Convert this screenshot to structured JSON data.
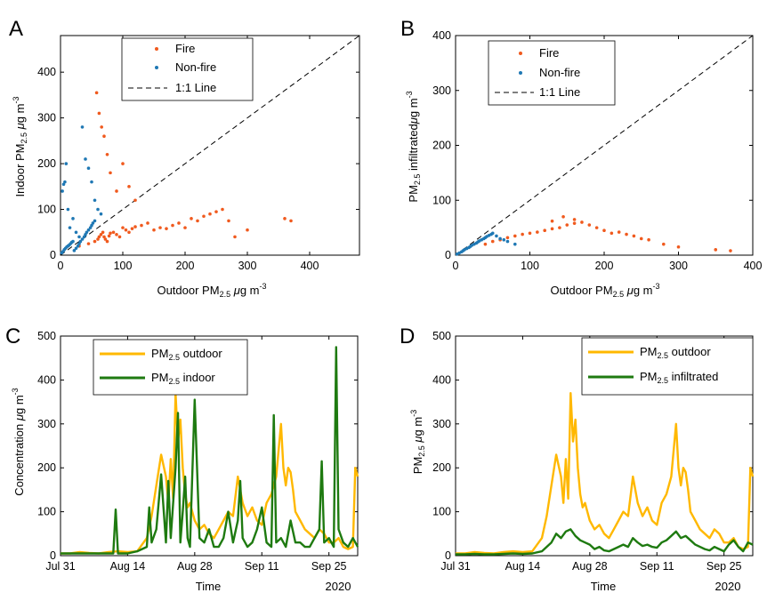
{
  "colors": {
    "fire": "#F05A1E",
    "nonfire": "#1F78B4",
    "outdoor": "#FFB800",
    "indoor": "#1E7A10",
    "line11": "#000000"
  },
  "chart_data": [
    {
      "panel": "A",
      "type": "scatter",
      "xlabel_main": "Outdoor PM",
      "xlabel_sub": "2.5",
      "xlabel_unit_mu": "μ",
      "xlabel_unit": "g m",
      "xlabel_exp": "-3",
      "ylabel_main": "Indoor PM",
      "ylabel_sub": "2.5",
      "ylabel_unit_mu": "μ",
      "ylabel_unit": "g m",
      "ylabel_exp": "-3",
      "xlim": [
        0,
        480
      ],
      "ylim": [
        0,
        480
      ],
      "xticks": [
        "0",
        "100",
        "200",
        "300",
        "400"
      ],
      "yticks": [
        "0",
        "100",
        "200",
        "300",
        "400"
      ],
      "legend": [
        "Fire",
        "Non-fire",
        "1:1 Line"
      ],
      "legend_position": "top-center",
      "series": [
        {
          "name": "Fire",
          "x": [
            30,
            45,
            55,
            60,
            62,
            65,
            68,
            70,
            72,
            75,
            78,
            80,
            85,
            90,
            95,
            100,
            105,
            110,
            115,
            120,
            130,
            140,
            150,
            160,
            170,
            180,
            190,
            200,
            210,
            220,
            230,
            240,
            250,
            260,
            270,
            280,
            300,
            360,
            370,
            58,
            62,
            66,
            70,
            75,
            80,
            90,
            100,
            110,
            120
          ],
          "y": [
            20,
            25,
            30,
            35,
            40,
            45,
            50,
            40,
            35,
            30,
            42,
            48,
            50,
            45,
            40,
            60,
            55,
            50,
            58,
            62,
            65,
            70,
            55,
            60,
            58,
            65,
            70,
            60,
            80,
            75,
            85,
            90,
            95,
            100,
            75,
            40,
            55,
            80,
            75,
            355,
            310,
            280,
            260,
            220,
            180,
            140,
            200,
            150,
            120
          ]
        },
        {
          "name": "Non-fire",
          "x": [
            2,
            4,
            6,
            8,
            10,
            12,
            14,
            16,
            18,
            20,
            22,
            25,
            28,
            30,
            32,
            35,
            38,
            40,
            42,
            45,
            48,
            50,
            52,
            55,
            3,
            5,
            7,
            9,
            12,
            15,
            20,
            25,
            30,
            35,
            40,
            45,
            50,
            55,
            60,
            65
          ],
          "y": [
            5,
            8,
            12,
            15,
            18,
            20,
            22,
            25,
            28,
            30,
            10,
            15,
            20,
            25,
            30,
            35,
            40,
            45,
            50,
            55,
            60,
            65,
            70,
            75,
            140,
            155,
            160,
            200,
            100,
            60,
            80,
            50,
            40,
            280,
            210,
            190,
            160,
            120,
            100,
            90
          ]
        }
      ]
    },
    {
      "panel": "B",
      "type": "scatter",
      "xlabel_main": "Outdoor PM",
      "xlabel_sub": "2.5",
      "xlabel_unit_mu": "μ",
      "xlabel_unit": "g m",
      "xlabel_exp": "-3",
      "ylabel_main": "PM",
      "ylabel_sub": "2.5",
      "ylabel_mid": " infiltrated",
      "ylabel_unit_mu": "μ",
      "ylabel_unit": "g m",
      "ylabel_exp": "-3",
      "xlim": [
        0,
        400
      ],
      "ylim": [
        0,
        400
      ],
      "xticks": [
        "0",
        "100",
        "200",
        "300",
        "400"
      ],
      "yticks": [
        "0",
        "100",
        "200",
        "300",
        "400"
      ],
      "legend": [
        "Fire",
        "Non-fire",
        "1:1 Line"
      ],
      "legend_position": "top-center",
      "series": [
        {
          "name": "Fire",
          "x": [
            40,
            50,
            60,
            70,
            80,
            90,
            100,
            110,
            120,
            130,
            140,
            150,
            160,
            170,
            180,
            190,
            200,
            210,
            220,
            230,
            240,
            250,
            260,
            280,
            300,
            350,
            370,
            145,
            160,
            130
          ],
          "y": [
            20,
            25,
            28,
            32,
            35,
            38,
            40,
            42,
            45,
            48,
            50,
            55,
            58,
            60,
            55,
            50,
            45,
            40,
            42,
            38,
            35,
            30,
            28,
            20,
            15,
            10,
            8,
            70,
            65,
            62
          ]
        },
        {
          "name": "Non-fire",
          "x": [
            2,
            5,
            8,
            10,
            12,
            15,
            18,
            20,
            22,
            25,
            28,
            30,
            32,
            35,
            38,
            40,
            42,
            45,
            48,
            50,
            55,
            60,
            65,
            70,
            80
          ],
          "y": [
            2,
            4,
            6,
            8,
            10,
            12,
            14,
            16,
            18,
            20,
            22,
            24,
            26,
            28,
            30,
            32,
            34,
            36,
            38,
            40,
            35,
            30,
            28,
            25,
            20
          ]
        }
      ]
    },
    {
      "panel": "C",
      "type": "line",
      "xlabel": "Time",
      "ylabel_main": "Concentration ",
      "ylabel_unit_mu": "μ",
      "ylabel_unit": "g m",
      "ylabel_exp": "-3",
      "year_label": "2020",
      "xlim": [
        0,
        62
      ],
      "ylim": [
        0,
        500
      ],
      "xticks": [
        "Jul 31",
        "Aug 14",
        "Aug 28",
        "Sep 11",
        "Sep 25"
      ],
      "xtick_days": [
        0,
        14,
        28,
        42,
        56
      ],
      "yticks": [
        "0",
        "100",
        "200",
        "300",
        "400",
        "500"
      ],
      "legend_position": "top-left",
      "legend": [
        {
          "main": "PM",
          "sub": "2.5",
          "rest": " outdoor"
        },
        {
          "main": "PM",
          "sub": "2.5",
          "rest": " indoor"
        }
      ],
      "series": [
        {
          "name": "PM2.5 outdoor",
          "t": [
            0,
            2,
            4,
            6,
            8,
            10,
            12,
            14,
            16,
            18,
            19,
            20,
            21,
            22,
            22.5,
            23,
            23.5,
            24,
            24.5,
            25,
            25.5,
            26,
            26.5,
            27,
            27.5,
            28,
            29,
            30,
            31,
            32,
            33,
            34,
            35,
            36,
            37,
            38,
            39,
            40,
            41,
            42,
            43,
            44,
            45,
            46,
            46.5,
            47,
            47.5,
            48,
            48.5,
            49,
            50,
            51,
            52,
            53,
            54,
            55,
            56,
            57,
            58,
            59,
            60,
            61,
            61.5,
            62
          ],
          "v": [
            5,
            5,
            8,
            6,
            5,
            8,
            10,
            8,
            10,
            40,
            90,
            160,
            230,
            180,
            120,
            220,
            130,
            370,
            260,
            310,
            200,
            140,
            110,
            120,
            100,
            80,
            60,
            70,
            50,
            40,
            60,
            80,
            100,
            90,
            180,
            120,
            90,
            110,
            80,
            70,
            120,
            140,
            180,
            300,
            200,
            160,
            200,
            190,
            150,
            100,
            80,
            60,
            50,
            40,
            60,
            50,
            30,
            30,
            40,
            20,
            15,
            20,
            200,
            180
          ]
        },
        {
          "name": "PM2.5 indoor",
          "t": [
            0,
            2,
            4,
            6,
            8,
            10,
            11,
            11.5,
            12,
            14,
            16,
            18,
            18.5,
            19,
            20,
            21,
            22,
            22.5,
            23,
            24,
            24.5,
            25,
            25.5,
            26,
            26.5,
            27,
            28,
            29,
            30,
            31,
            32,
            33,
            34,
            35,
            36,
            37,
            37.5,
            38,
            39,
            40,
            41,
            42,
            43,
            44,
            44.5,
            45,
            46,
            47,
            48,
            49,
            50,
            51,
            52,
            53,
            54,
            54.5,
            55,
            56,
            57,
            57.5,
            58,
            59,
            60,
            61,
            62
          ],
          "v": [
            5,
            5,
            5,
            5,
            5,
            5,
            5,
            105,
            5,
            5,
            10,
            20,
            110,
            30,
            60,
            185,
            30,
            170,
            40,
            200,
            325,
            30,
            100,
            180,
            40,
            20,
            355,
            40,
            30,
            60,
            20,
            20,
            40,
            100,
            30,
            80,
            170,
            40,
            20,
            30,
            60,
            110,
            30,
            20,
            320,
            30,
            40,
            20,
            80,
            30,
            30,
            20,
            20,
            40,
            60,
            215,
            30,
            40,
            20,
            475,
            60,
            30,
            20,
            40,
            20
          ]
        }
      ]
    },
    {
      "panel": "D",
      "type": "line",
      "xlabel": "Time",
      "ylabel_main": "PM",
      "ylabel_sub": "2.5",
      "ylabel_unit_mu": "μ",
      "ylabel_unit": "g m",
      "ylabel_exp": "-3",
      "year_label": "2020",
      "xlim": [
        0,
        62
      ],
      "ylim": [
        0,
        500
      ],
      "xticks": [
        "Jul 31",
        "Aug 14",
        "Aug 28",
        "Sep 11",
        "Sep 25"
      ],
      "xtick_days": [
        0,
        14,
        28,
        42,
        56
      ],
      "yticks": [
        "0",
        "100",
        "200",
        "300",
        "400",
        "500"
      ],
      "legend_position": "top-right",
      "legend": [
        {
          "main": "PM",
          "sub": "2.5",
          "rest": " outdoor"
        },
        {
          "main": "PM",
          "sub": "2.5",
          "rest": " infiltrated"
        }
      ],
      "series": [
        {
          "name": "PM2.5 outdoor",
          "t": [
            0,
            2,
            4,
            6,
            8,
            10,
            12,
            14,
            16,
            18,
            19,
            20,
            21,
            22,
            22.5,
            23,
            23.5,
            24,
            24.5,
            25,
            25.5,
            26,
            26.5,
            27,
            27.5,
            28,
            29,
            30,
            31,
            32,
            33,
            34,
            35,
            36,
            37,
            38,
            39,
            40,
            41,
            42,
            43,
            44,
            45,
            46,
            46.5,
            47,
            47.5,
            48,
            48.5,
            49,
            50,
            51,
            52,
            53,
            54,
            55,
            56,
            57,
            58,
            59,
            60,
            61,
            61.5,
            62
          ],
          "v": [
            5,
            5,
            8,
            6,
            5,
            8,
            10,
            8,
            10,
            40,
            90,
            160,
            230,
            180,
            120,
            220,
            130,
            370,
            260,
            310,
            200,
            140,
            110,
            120,
            100,
            80,
            60,
            70,
            50,
            40,
            60,
            80,
            100,
            90,
            180,
            120,
            90,
            110,
            80,
            70,
            120,
            140,
            180,
            300,
            200,
            160,
            200,
            190,
            150,
            100,
            80,
            60,
            50,
            40,
            60,
            50,
            30,
            30,
            40,
            20,
            15,
            20,
            200,
            180
          ]
        },
        {
          "name": "PM2.5 infiltrated",
          "t": [
            0,
            2,
            4,
            6,
            8,
            10,
            12,
            14,
            16,
            18,
            19,
            20,
            21,
            22,
            23,
            24,
            25,
            26,
            27,
            28,
            29,
            30,
            31,
            32,
            33,
            34,
            35,
            36,
            37,
            38,
            39,
            40,
            41,
            42,
            43,
            44,
            45,
            46,
            47,
            48,
            49,
            50,
            51,
            52,
            53,
            54,
            55,
            56,
            57,
            58,
            59,
            60,
            61,
            62
          ],
          "v": [
            3,
            3,
            4,
            3,
            3,
            4,
            5,
            4,
            5,
            10,
            20,
            30,
            50,
            40,
            55,
            60,
            45,
            35,
            30,
            25,
            15,
            20,
            12,
            10,
            15,
            20,
            25,
            20,
            40,
            30,
            22,
            25,
            20,
            18,
            30,
            35,
            45,
            55,
            40,
            45,
            35,
            25,
            20,
            15,
            12,
            20,
            15,
            10,
            25,
            35,
            20,
            10,
            30,
            25
          ]
        }
      ]
    }
  ]
}
